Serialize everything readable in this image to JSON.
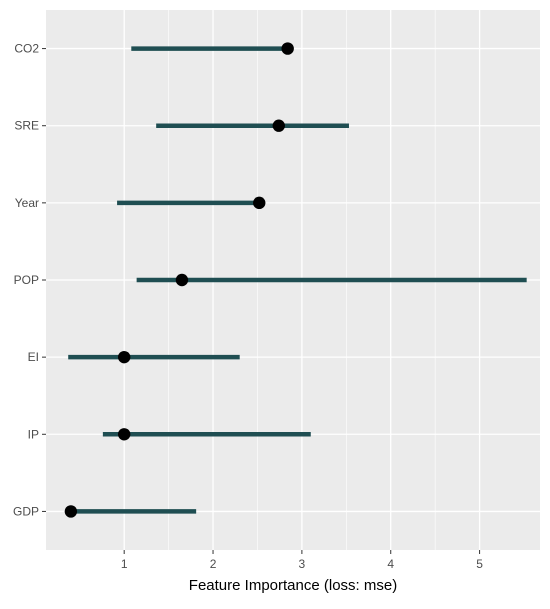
{
  "chart_data": {
    "type": "dot-interval",
    "title": "",
    "xlabel": "Feature Importance (loss: mse)",
    "ylabel": "",
    "xlim": [
      0.12,
      5.68
    ],
    "x_ticks": [
      1,
      2,
      3,
      4,
      5
    ],
    "grid": true,
    "legend": "none",
    "colors": {
      "panel": "#ebebeb",
      "grid": "#ffffff",
      "interval": "#1f4e52",
      "point": "#000000"
    },
    "features": [
      {
        "label": "CO2",
        "importance": 2.84,
        "lower": 1.08,
        "upper": 2.84
      },
      {
        "label": "SRE",
        "importance": 2.74,
        "lower": 1.36,
        "upper": 3.53
      },
      {
        "label": "Year",
        "importance": 2.52,
        "lower": 0.92,
        "upper": 2.52
      },
      {
        "label": "POP",
        "importance": 1.65,
        "lower": 1.14,
        "upper": 5.53
      },
      {
        "label": "EI",
        "importance": 1.0,
        "lower": 0.37,
        "upper": 2.3
      },
      {
        "label": "IP",
        "importance": 1.0,
        "lower": 0.76,
        "upper": 3.1
      },
      {
        "label": "GDP",
        "importance": 0.4,
        "lower": 0.4,
        "upper": 1.81
      }
    ]
  }
}
